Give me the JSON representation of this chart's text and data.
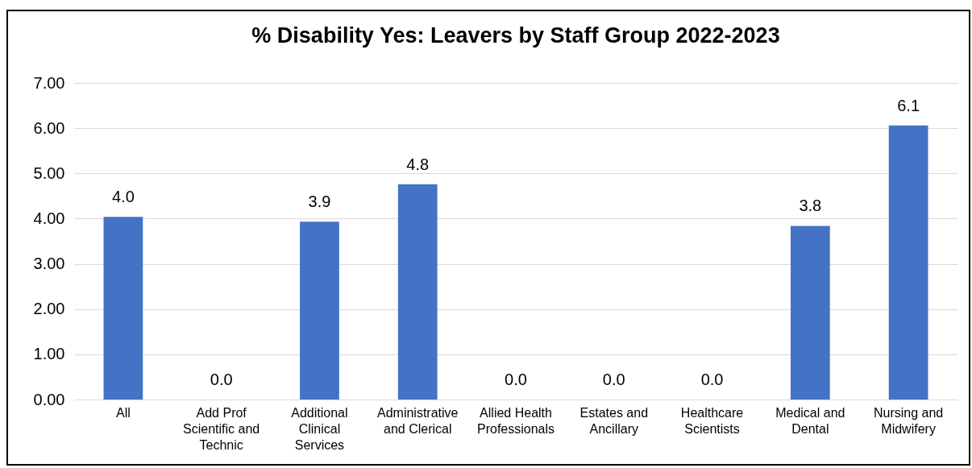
{
  "chart_data": {
    "type": "bar",
    "title": "% Disability Yes: Leavers by Staff Group 2022-2023",
    "categories": [
      "All",
      "Add Prof Scientific and Technic",
      "Additional Clinical Services",
      "Administrative and Clerical",
      "Allied Health Professionals",
      "Estates and Ancillary",
      "Healthcare Scientists",
      "Medical and Dental",
      "Nursing and Midwifery"
    ],
    "values": [
      4.04,
      0,
      3.93,
      4.76,
      0,
      0,
      0,
      3.84,
      6.06
    ],
    "value_labels": [
      "4.0",
      "0.0",
      "3.9",
      "4.8",
      "0.0",
      "0.0",
      "0.0",
      "3.8",
      "6.1"
    ],
    "color": "#4472c4",
    "ylim": [
      0,
      7
    ],
    "yticks": [
      {
        "value": 0,
        "label": "0.00"
      },
      {
        "value": 1,
        "label": "1.00"
      },
      {
        "value": 2,
        "label": "2.00"
      },
      {
        "value": 3,
        "label": "3.00"
      },
      {
        "value": 4,
        "label": "4.00"
      },
      {
        "value": 5,
        "label": "5.00"
      },
      {
        "value": 6,
        "label": "6.00"
      },
      {
        "value": 7,
        "label": "7.00"
      }
    ],
    "grid": "y"
  }
}
